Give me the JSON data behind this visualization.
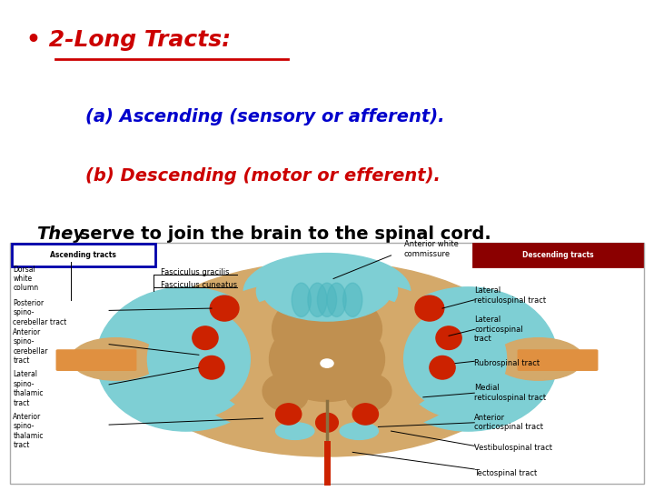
{
  "bg": "#ffffff",
  "title": "• 2-Long Tracts:",
  "title_color": "#cc0000",
  "title_fs": 18,
  "line1": "(a) Ascending (sensory or afferent).",
  "line1_color": "#0000cc",
  "line2": "(b) Descending (motor or efferent).",
  "line2_color": "#cc0000",
  "line3a": "They",
  "line3b": " serve to join the brain to the spinal cord.",
  "line3_color": "#000000",
  "body_fs": 14,
  "line3_fs": 14,
  "tan": "#d4a96a",
  "dark_tan": "#c09050",
  "blue": "#7ecfd4",
  "red": "#cc2200",
  "orange": "#e09040",
  "beige": "#e8c890",
  "asc_box_edge": "#0000aa",
  "desc_box_fill": "#8b0000",
  "label_fs": 6.0,
  "small_label_fs": 5.5
}
